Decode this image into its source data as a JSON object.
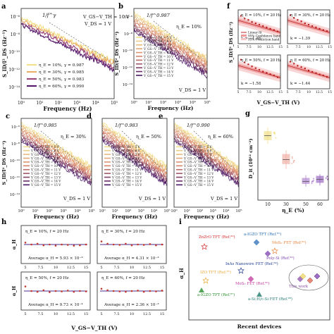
{
  "figure": {
    "panel_letters": [
      "a",
      "b",
      "c",
      "d",
      "e",
      "f",
      "g",
      "h",
      "i"
    ]
  },
  "chart_data": [
    {
      "panel": "a",
      "type": "line",
      "xlabel": "Frequency (Hz)",
      "ylabel": "S_ID/I²_DS (Hz⁻¹)",
      "xscale": "log",
      "yscale": "log",
      "xlim": [
        1,
        100000
      ],
      "ylim": [
        1e-15,
        1e-05
      ],
      "x_ticks": [
        "10⁰",
        "10¹",
        "10²",
        "10³",
        "10⁴",
        "10⁵"
      ],
      "y_ticks": [
        "10⁻⁶",
        "10⁻⁸",
        "10⁻¹⁰",
        "10⁻¹²",
        "10⁻¹⁴"
      ],
      "annotations": [
        "1/f^γ",
        "V_GS−V_TH = 10 V",
        "V_DS = 1 V"
      ],
      "legend_position": "bottom-left",
      "series": [
        {
          "name": "η_E = 10%, γ = 0.987",
          "color": "#f3e08a",
          "start": 1e-06,
          "gamma": 0.987
        },
        {
          "name": "η_E = 30%, γ = 0.985",
          "color": "#e9b06a",
          "start": 6e-07,
          "gamma": 0.985
        },
        {
          "name": "η_E = 50%, γ = 0.983",
          "color": "#9c4a7c",
          "start": 3e-07,
          "gamma": 0.983
        },
        {
          "name": "η_E = 60%, γ = 0.990",
          "color": "#5a1d6e",
          "start": 1.5e-07,
          "gamma": 0.99
        }
      ]
    },
    {
      "panel": "b",
      "type": "line",
      "xlabel": "Frequency (Hz)",
      "ylabel": "S_ID/I²_DS (Hz⁻¹)",
      "xscale": "log",
      "yscale": "log",
      "xlim": [
        1,
        100000
      ],
      "ylim": [
        1e-15,
        1e-05
      ],
      "x_ticks": [
        "10⁰",
        "10¹",
        "10²",
        "10³",
        "10⁴",
        "10⁵"
      ],
      "y_ticks": [
        "10⁻⁶",
        "10⁻⁸",
        "10⁻¹⁰",
        "10⁻¹²",
        "10⁻¹⁴"
      ],
      "annotations": [
        "1/f^0.987",
        "η_E = 10%",
        "V_DS = 1 V"
      ],
      "legend_entries": [
        "V_GS−V_TH = 5 V",
        "V_GS−V_TH = 6 V",
        "V_GS−V_TH = 7 V",
        "V_GS−V_TH = 8 V",
        "V_GS−V_TH = 9 V",
        "V_GS−V_TH = 10 V",
        "V_GS−V_TH = 11 V",
        "V_GS−V_TH = 12 V",
        "V_GS−V_TH = 13 V",
        "V_GS−V_TH = 14 V",
        "V_GS−V_TH = 15 V"
      ],
      "gamma": 0.987,
      "start_top": 3e-06,
      "start_bottom": 3e-08
    },
    {
      "panel": "c",
      "type": "line",
      "xlabel": "Frequency (Hz)",
      "ylabel": "S_ID/I²_DS (Hz⁻¹)",
      "xscale": "log",
      "yscale": "log",
      "xlim": [
        1,
        100000
      ],
      "ylim": [
        1e-15,
        1e-05
      ],
      "x_ticks": [
        "10⁰",
        "10¹",
        "10²",
        "10³",
        "10⁴",
        "10⁵"
      ],
      "y_ticks": [
        "10⁻⁶",
        "10⁻⁸",
        "10⁻¹⁰",
        "10⁻¹²",
        "10⁻¹⁴"
      ],
      "annotations": [
        "1/f^0.985",
        "η_E = 30%",
        "V_DS = 1 V"
      ],
      "legend_entries": [
        "V_GS−V_TH = 5 V",
        "V_GS−V_TH = 6 V",
        "V_GS−V_TH = 7 V",
        "V_GS−V_TH = 8 V",
        "V_GS−V_TH = 9 V",
        "V_GS−V_TH = 10 V",
        "V_GS−V_TH = 11 V",
        "V_GS−V_TH = 12 V",
        "V_GS−V_TH = 13 V",
        "V_GS−V_TH = 14 V",
        "V_GS−V_TH = 15 V"
      ],
      "gamma": 0.985,
      "start_top": 3e-06,
      "start_bottom": 3e-08
    },
    {
      "panel": "d",
      "type": "line",
      "xlabel": "Frequency (Hz)",
      "xscale": "log",
      "yscale": "log",
      "xlim": [
        1,
        100000
      ],
      "ylim": [
        1e-15,
        1e-05
      ],
      "x_ticks": [
        "10⁰",
        "10¹",
        "10²",
        "10³",
        "10⁴",
        "10⁵"
      ],
      "annotations": [
        "1/f^0.983",
        "η_E = 50%",
        "V_DS = 1 V"
      ],
      "legend_entries": [
        "V_GS−V_TH = 5 V",
        "V_GS−V_TH = 6 V",
        "V_GS−V_TH = 7 V",
        "V_GS−V_TH = 8 V",
        "V_GS−V_TH = 9 V",
        "V_GS−V_TH = 10 V",
        "V_GS−V_TH = 11 V",
        "V_GS−V_TH = 12 V",
        "V_GS−V_TH = 13 V",
        "V_GS−V_TH = 14 V",
        "V_GS−V_TH = 15 V"
      ],
      "gamma": 0.983,
      "start_top": 3e-06,
      "start_bottom": 3e-08
    },
    {
      "panel": "e",
      "type": "line",
      "xlabel": "Frequency (Hz)",
      "xscale": "log",
      "yscale": "log",
      "xlim": [
        1,
        100000
      ],
      "ylim": [
        1e-15,
        1e-05
      ],
      "x_ticks": [
        "10⁰",
        "10¹",
        "10²",
        "10³",
        "10⁴",
        "10⁵"
      ],
      "annotations": [
        "1/f^0.990",
        "η_E = 60%",
        "V_DS = 1 V"
      ],
      "legend_entries": [
        "V_GS−V_TH = 5 V",
        "V_GS−V_TH = 6 V",
        "V_GS−V_TH = 7 V",
        "V_GS−V_TH = 8 V",
        "V_GS−V_TH = 9 V",
        "V_GS−V_TH = 10 V",
        "V_GS−V_TH = 11 V",
        "V_GS−V_TH = 12 V",
        "V_GS−V_TH = 13 V",
        "V_GS−V_TH = 14 V",
        "V_GS−V_TH = 15 V"
      ],
      "gamma": 0.99,
      "start_top": 3e-06,
      "start_bottom": 3e-08
    },
    {
      "panel": "f",
      "type": "scatter",
      "xlabel": "V_GS−V_TH (V)",
      "ylabel": "S_ID/I²_DS (Hz⁻¹)",
      "x_ticks": [
        5,
        7.5,
        10,
        12.5,
        15
      ],
      "legend_entries": [
        "Linear fit",
        "95% Confidence band",
        "95% Prediction band"
      ],
      "subplots": [
        {
          "label": "η_E = 10%, f = 20 Hz",
          "k": "k = −1.36",
          "y": [
            0.78,
            0.7,
            0.66,
            0.6,
            0.56,
            0.52,
            0.48,
            0.44,
            0.4,
            0.36,
            0.32
          ]
        },
        {
          "label": "η_E = 30%, f = 20 Hz",
          "k": "k = −1.39",
          "y": [
            0.8,
            0.72,
            0.66,
            0.62,
            0.56,
            0.52,
            0.48,
            0.44,
            0.4,
            0.36,
            0.33
          ]
        },
        {
          "label": "η_E = 50%, f = 20 Hz",
          "k": "k = −1.58",
          "y": [
            0.82,
            0.74,
            0.68,
            0.62,
            0.57,
            0.52,
            0.47,
            0.43,
            0.39,
            0.35,
            0.3
          ]
        },
        {
          "label": "η_E = 60%, f = 20 Hz",
          "k": "k = −1.44",
          "y": [
            0.76,
            0.7,
            0.64,
            0.6,
            0.56,
            0.5,
            0.46,
            0.42,
            0.38,
            0.35,
            0.31
          ]
        }
      ]
    },
    {
      "panel": "g",
      "type": "box",
      "xlabel": "η_E (%)",
      "ylabel": "D_it (10¹² cm⁻²)",
      "categories": [
        "10",
        "30",
        "50",
        "60"
      ],
      "boxes": [
        {
          "category": "10",
          "q1": 5.8,
          "median": 6.2,
          "q3": 6.6,
          "min": 5.4,
          "max": 7.0,
          "color": "#f3e08a"
        },
        {
          "category": "30",
          "q1": 3.5,
          "median": 3.9,
          "q3": 4.4,
          "min": 3.0,
          "max": 4.8,
          "color": "#f2b1a8"
        },
        {
          "category": "50",
          "q1": 1.6,
          "median": 1.8,
          "q3": 2.1,
          "min": 1.3,
          "max": 2.4,
          "color": "#b48ad1"
        },
        {
          "category": "60",
          "q1": 1.7,
          "median": 2.0,
          "q3": 2.3,
          "min": 1.4,
          "max": 2.5,
          "color": "#9d6cc4"
        }
      ],
      "ylim": [
        0,
        8
      ]
    },
    {
      "panel": "h",
      "type": "scatter",
      "xlabel": "V_GS−V_TH (V)",
      "ylabel": "α_H",
      "x_ticks": [
        5,
        7.5,
        10,
        12.5,
        15
      ],
      "subplots": [
        {
          "label": "η_E = 10%, f = 20 Hz",
          "avg": "Average α_H = 5.93 × 10⁻³",
          "y": [
            0.55,
            0.5,
            0.52,
            0.48,
            0.5,
            0.47,
            0.5,
            0.49,
            0.47,
            0.48,
            0.5
          ]
        },
        {
          "label": "η_E = 30%, f = 20 Hz",
          "avg": "Average α_H = 4.31 × 10⁻³",
          "y": [
            0.58,
            0.52,
            0.5,
            0.49,
            0.52,
            0.48,
            0.5,
            0.49,
            0.51,
            0.48,
            0.5
          ]
        },
        {
          "label": "η_E = 50%, f = 20 Hz",
          "avg": "Average α_H = 9.73 × 10⁻⁴",
          "y": [
            0.62,
            0.5,
            0.48,
            0.52,
            0.47,
            0.5,
            0.49,
            0.51,
            0.48,
            0.5,
            0.49
          ]
        },
        {
          "label": "η_E = 60%, f = 20 Hz",
          "avg": "Average α_H = 2.36 × 10⁻³",
          "y": [
            0.56,
            0.52,
            0.5,
            0.49,
            0.48,
            0.5,
            0.51,
            0.48,
            0.5,
            0.49,
            0.51
          ]
        }
      ]
    },
    {
      "panel": "i",
      "type": "scatter",
      "xlabel": "Recent devices",
      "ylabel": "α_H",
      "points": [
        {
          "label": "ZnZrO TFT",
          "ref": "(Ref.⁸⁰)",
          "color": "#d62d2d"
        },
        {
          "label": "a-IGZO TFT",
          "ref": "(Ref.⁸¹)",
          "color": "#2a6fb8"
        },
        {
          "label": "MoS₂ FET",
          "ref": "(Ref.⁸²)",
          "color": "#e8833a"
        },
        {
          "label": "Poly-Si",
          "ref": "(Ref.⁸³)",
          "color": "#7b3fb0"
        },
        {
          "label": "InAs Nanowire FET",
          "ref": "(Ref.⁸⁴)",
          "color": "#1f3e91"
        },
        {
          "label": "IZO TFT",
          "ref": "(Ref.⁸⁵)",
          "color": "#e8a83a"
        },
        {
          "label": "MoS₂ FET",
          "ref": "(Ref.⁸⁶)",
          "color": "#c0399c"
        },
        {
          "label": "a-IGZO TFT",
          "ref": "(Ref.⁸⁷)",
          "color": "#2a8f2e"
        },
        {
          "label": "a-Si:H/c-Si FET",
          "ref": "(Ref.⁸⁸)",
          "color": "#1e7a6e"
        },
        {
          "label": "This work",
          "ref": "",
          "color": "#8a4fa8"
        }
      ]
    }
  ]
}
